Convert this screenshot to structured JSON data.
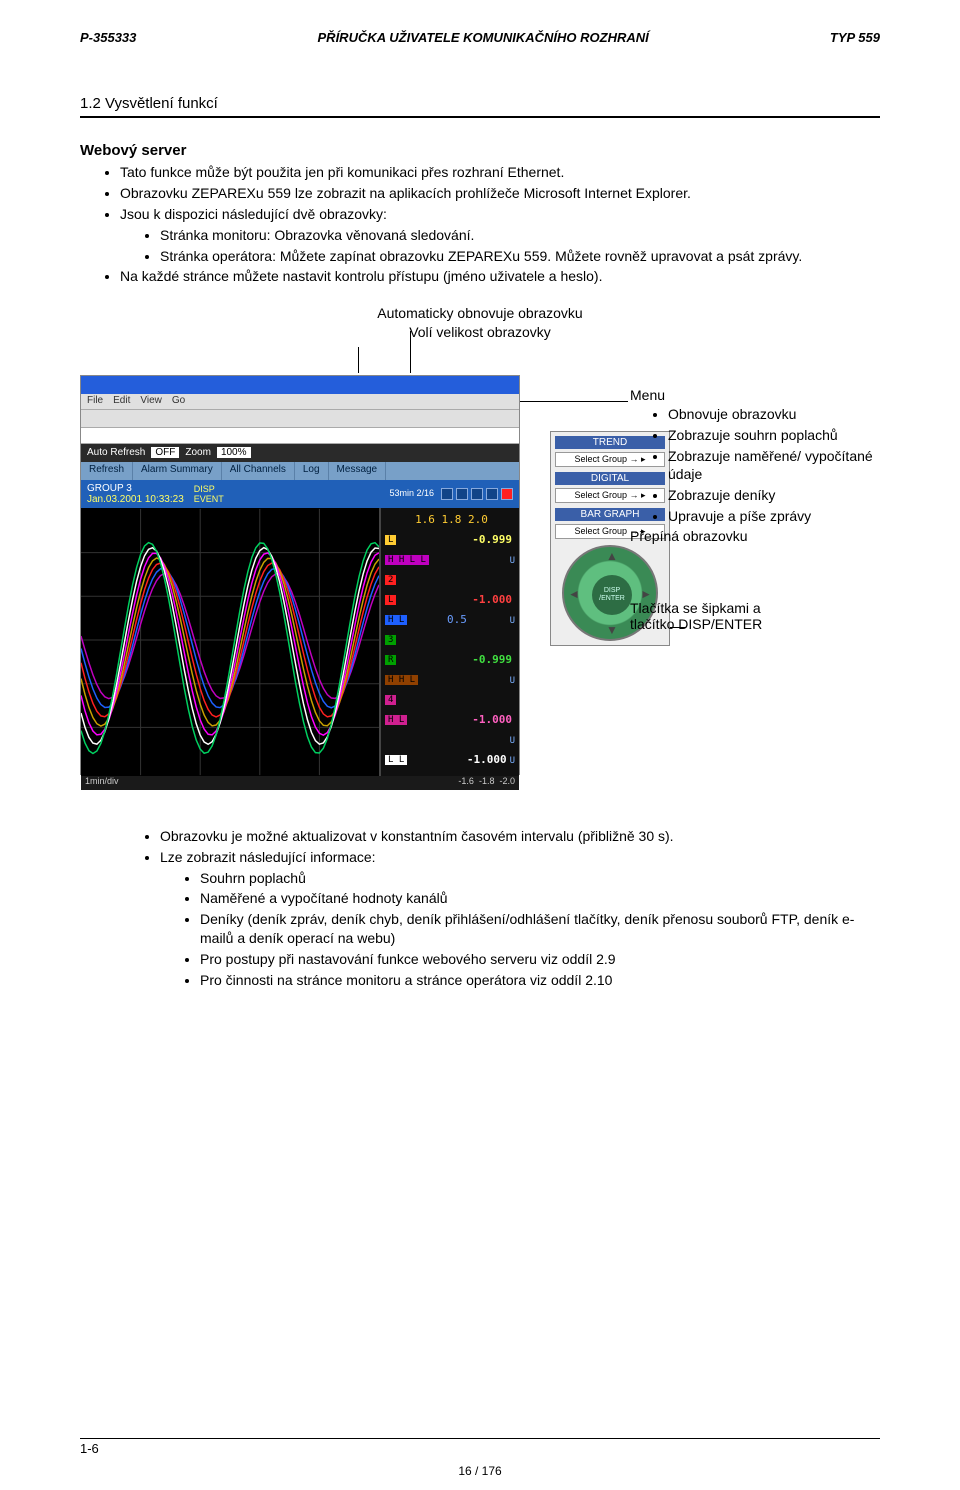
{
  "header": {
    "left": "P-355333",
    "center": "PŘÍRUČKA UŽIVATELE KOMUNIKAČNÍHO ROZHRANÍ",
    "right": "TYP  559"
  },
  "section_title": "1.2  Vysvětlení funkcí",
  "sub_heading": "Webový server",
  "top_bullets": {
    "b1": "Tato funkce může být použita jen při komunikaci přes rozhraní Ethernet.",
    "b2": "Obrazovku ZEPAREXu 559 lze zobrazit na aplikacích prohlížeče Microsoft Internet Explorer.",
    "b3": "Jsou k dispozici následující dvě obrazovky:",
    "b3a": "Stránka monitoru: Obrazovka věnovaná sledování.",
    "b3b": "Stránka operátora: Můžete zapínat obrazovku ZEPAREXu 559. Můžete rovněž upravovat a psát zprávy.",
    "b4": "Na každé stránce můžete nastavit kontrolu přístupu (jméno uživatele a heslo)."
  },
  "center_labels": {
    "auto": "Automaticky obnovuje obrazovku",
    "zoom": "Volí velikost obrazovky"
  },
  "shot": {
    "menubar": [
      "File",
      "Edit",
      "View",
      "Go"
    ],
    "auto_refresh_label": "Auto Refresh",
    "auto_refresh_value": "OFF",
    "zoom_label": "Zoom",
    "zoom_value": "100%",
    "tabs": [
      "Refresh",
      "Alarm Summary",
      "All Channels",
      "Log",
      "Message"
    ],
    "group_left": "GROUP 3",
    "group_date": "Jan.03.2001 10:33:23",
    "disp_event": "DISP\nEVENT",
    "top_right": "53min 2/16",
    "trace_colors": [
      "#c000c0",
      "#1e60ff",
      "#ff2020",
      "#c8a000",
      "#ff00ff",
      "#ffffff",
      "#00d060"
    ],
    "sidevals": [
      {
        "lab": "",
        "labbg": "#ffcc33",
        "txt": "1.6  1.8  2.0",
        "col": "#ffcc33",
        "val": "",
        "unit": ""
      },
      {
        "lab": "L",
        "labbg": "#ffcc33",
        "txt": "",
        "col": "#ffff66",
        "val": "-0.999",
        "unit": ""
      },
      {
        "lab": "H H L L",
        "labbg": "#c000c0",
        "txt": "",
        "col": "#c060ff",
        "val": "",
        "unit": "U"
      },
      {
        "lab": "2",
        "labbg": "#ff2020",
        "txt": "",
        "col": "#ffffff",
        "val": "",
        "unit": ""
      },
      {
        "lab": "L",
        "labbg": "#ff2020",
        "txt": "",
        "col": "#ff4040",
        "val": "-1.000",
        "unit": ""
      },
      {
        "lab": "H L",
        "labbg": "#1e60ff",
        "txt": "0.5",
        "col": "#6a9dff",
        "val": "",
        "unit": "U"
      },
      {
        "lab": "3",
        "labbg": "#00a000",
        "txt": "",
        "col": "#ffffff",
        "val": "",
        "unit": ""
      },
      {
        "lab": "R",
        "labbg": "#00a000",
        "txt": "",
        "col": "#40e040",
        "val": "-0.999",
        "unit": ""
      },
      {
        "lab": "H H L",
        "labbg": "#904000",
        "txt": "",
        "col": "#d89050",
        "val": "",
        "unit": "U"
      },
      {
        "lab": "4",
        "labbg": "#d02090",
        "txt": "",
        "col": "#ffffff",
        "val": "",
        "unit": ""
      },
      {
        "lab": "H L",
        "labbg": "#d02090",
        "txt": "",
        "col": "#ff60c0",
        "val": "-1.000",
        "unit": ""
      },
      {
        "lab": "",
        "labbg": "#ffffff",
        "txt": "",
        "col": "#ffffff",
        "val": "",
        "unit": "U"
      },
      {
        "lab": "L L",
        "labbg": "#ffffff",
        "txt": "",
        "col": "#ffffff",
        "val": "-1.000",
        "unit": "U"
      }
    ],
    "bottom_scale": [
      "-1.6",
      "-1.8",
      "-2.0"
    ],
    "scale_left": "1min/div"
  },
  "rpanel": {
    "trend": "TREND",
    "sel": "Select Group  → ▸",
    "digital": "DIGITAL",
    "bar": "BAR GRAPH",
    "disp": "DISP\n/ENTER"
  },
  "right_text": {
    "menu": "Menu",
    "items": [
      "Obnovuje obrazovku",
      "Zobrazuje souhrn poplachů",
      "Zobrazuje naměřené/ vypočítané údaje",
      "Zobrazuje deníky",
      "Upravuje a píše zprávy"
    ],
    "switch": "Přepíná obrazovku",
    "arrows": "Tlačítka se šipkami a\ntlačítko DISP/ENTER"
  },
  "lower_bullets": {
    "b1": "Obrazovku je možné aktualizovat v konstantním časovém intervalu (přibližně 30 s).",
    "b2": "Lze zobrazit následující informace:",
    "sub": [
      "Souhrn poplachů",
      "Naměřené a vypočítané hodnoty kanálů",
      "Deníky (deník zpráv, deník chyb, deník přihlášení/odhlášení tlačítky, deník přenosu souborů FTP, deník e-mailů a deník operací na webu)",
      "Pro postupy při nastavování funkce webového serveru viz oddíl 2.9",
      "Pro činnosti na stránce monitoru a stránce operátora viz oddíl 2.10"
    ]
  },
  "footer": {
    "left": "1-6",
    "center": "16 / 176"
  }
}
